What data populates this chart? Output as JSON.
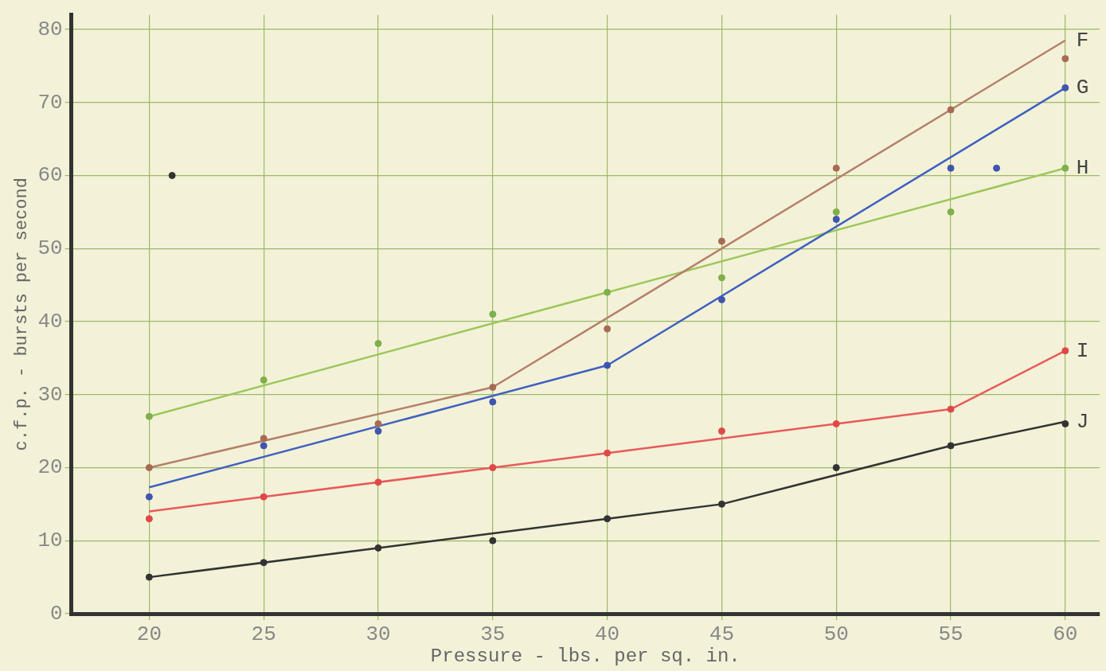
{
  "chart_data": {
    "type": "line",
    "xlabel": "Pressure - lbs. per sq. in.",
    "ylabel": "c.f.p. - bursts per second",
    "xlim": [
      16.6,
      61.5
    ],
    "ylim": [
      0,
      82
    ],
    "xticks": [
      20,
      25,
      30,
      35,
      40,
      45,
      50,
      55,
      60
    ],
    "yticks": [
      0,
      10,
      20,
      30,
      40,
      50,
      60,
      70,
      80
    ],
    "grid": true,
    "legend": false,
    "series": [
      {
        "name": "F",
        "type": "line",
        "marker": "none",
        "color": "#b5806a",
        "x": [
          20,
          35,
          60
        ],
        "values": [
          20,
          31,
          78.5
        ]
      },
      {
        "type": "scatter",
        "marker": "circle",
        "color": "#a86a55",
        "x": [
          20,
          25,
          30,
          35,
          40,
          45,
          50,
          55,
          60
        ],
        "values": [
          20,
          24,
          26,
          31,
          39,
          51,
          61,
          69,
          76
        ]
      },
      {
        "name": "G",
        "type": "line",
        "marker": "none",
        "color": "#4060c0",
        "x": [
          20,
          40,
          60
        ],
        "values": [
          17.3,
          34,
          72
        ]
      },
      {
        "type": "scatter",
        "marker": "circle",
        "color": "#3f55b0",
        "x": [
          20,
          25,
          30,
          35,
          40,
          45,
          50,
          55,
          57,
          60
        ],
        "values": [
          16,
          23,
          25,
          29,
          34,
          43,
          54,
          61,
          61,
          72
        ]
      },
      {
        "name": "H",
        "type": "line",
        "marker": "none",
        "color": "#9dc75a",
        "x": [
          20,
          60
        ],
        "values": [
          27,
          61
        ]
      },
      {
        "type": "scatter",
        "marker": "circle",
        "color": "#7fb04a",
        "x": [
          20,
          25,
          30,
          35,
          40,
          45,
          50,
          55,
          60
        ],
        "values": [
          27,
          32,
          37,
          41,
          44,
          46,
          55,
          55,
          61
        ]
      },
      {
        "name": "I",
        "type": "line",
        "marker": "none",
        "color": "#e85a5a",
        "x": [
          20,
          35,
          40,
          50,
          55,
          60
        ],
        "values": [
          14,
          20,
          22,
          26,
          28,
          36
        ]
      },
      {
        "type": "scatter",
        "marker": "circle",
        "color": "#e04848",
        "x": [
          20,
          25,
          30,
          35,
          40,
          45,
          50,
          55,
          60
        ],
        "values": [
          13,
          16,
          18,
          20,
          22,
          25,
          26,
          28,
          36
        ]
      },
      {
        "name": "J",
        "type": "line",
        "marker": "none",
        "color": "#333333",
        "x": [
          20,
          40,
          45,
          55,
          60
        ],
        "values": [
          5,
          13,
          15,
          23,
          26.3
        ]
      },
      {
        "type": "scatter",
        "marker": "circle",
        "color": "#333333",
        "x": [
          20,
          21,
          25,
          30,
          35,
          40,
          45,
          50,
          55,
          60
        ],
        "values": [
          5,
          60,
          7,
          9,
          10,
          13,
          15,
          20,
          23,
          26
        ]
      }
    ]
  }
}
